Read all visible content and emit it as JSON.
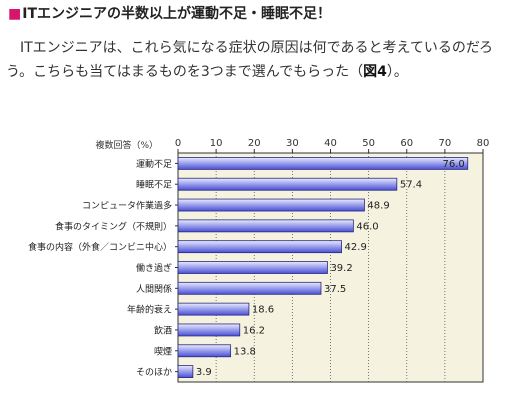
{
  "article": {
    "headline_mark": "■",
    "headline": "ITエンジニアの半数以上が運動不足・睡眠不足！",
    "intro_text": "ITエンジニアは、これら気になる症状の原因は何であると考えているのだろう。こちらも当てはまるものを3つまで選んでもらった（",
    "intro_ref": "図4",
    "intro_end": "）。"
  },
  "chart_data": {
    "type": "bar",
    "orientation": "horizontal",
    "axis_caption": "複数回答（%）",
    "categories": [
      "運動不足",
      "睡眠不足",
      "コンピュータ作業過多",
      "食事のタイミング（不規則）",
      "食事の内容（外食／コンビニ中心）",
      "働き過ぎ",
      "人間関係",
      "年齢的衰え",
      "飲酒",
      "喫煙",
      "そのほか"
    ],
    "values": [
      76.0,
      57.4,
      48.9,
      46.0,
      42.9,
      39.2,
      37.5,
      18.6,
      16.2,
      13.8,
      3.9
    ],
    "value_labels": [
      "76.0",
      "57.4",
      "48.9",
      "46.0",
      "42.9",
      "39.2",
      "37.5",
      "18.6",
      "16.2",
      "13.8",
      "3.9"
    ],
    "xlim": [
      0,
      80
    ],
    "xticks": [
      0,
      10,
      20,
      30,
      40,
      50,
      60,
      70,
      80
    ],
    "grid": true,
    "colors": {
      "bar_light": "#e8ebff",
      "bar_dark": "#4a4fd6",
      "bar_edge": "#2a2a7a",
      "plot_background": "#f5f3e0",
      "axis": "#333333",
      "grid": "#555555"
    }
  }
}
